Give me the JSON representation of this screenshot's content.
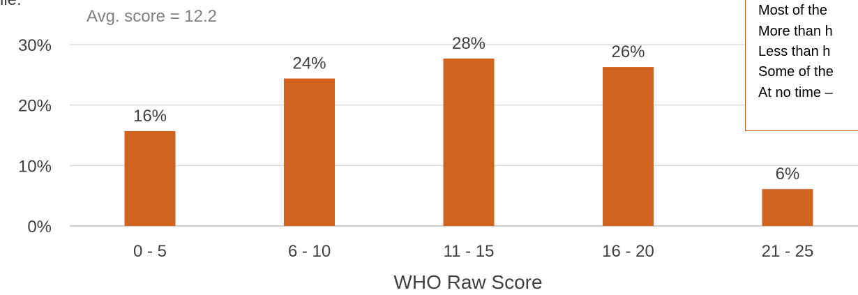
{
  "top_fragment": "ile.",
  "chart_data": {
    "type": "bar",
    "xlabel": "WHO Raw Score",
    "ylabel": "",
    "categories": [
      "0 - 5",
      "6 - 10",
      "11 - 15",
      "16 - 20",
      "21 - 25"
    ],
    "values": [
      15.7,
      24.4,
      27.7,
      26.3,
      6.1
    ],
    "data_labels": [
      "16%",
      "24%",
      "28%",
      "26%",
      "6%"
    ],
    "ylim": [
      0,
      30
    ],
    "yticks": [
      0,
      10,
      20,
      30
    ],
    "ytick_labels": [
      "0%",
      "10%",
      "20%",
      "30%"
    ],
    "grid": true,
    "bar_color": "#d0641f",
    "annotation": "Avg. score = 12.2",
    "legend_lines": [
      "Most of the",
      "More than h",
      "Less than h",
      "Some of the",
      "At no time –"
    ]
  }
}
